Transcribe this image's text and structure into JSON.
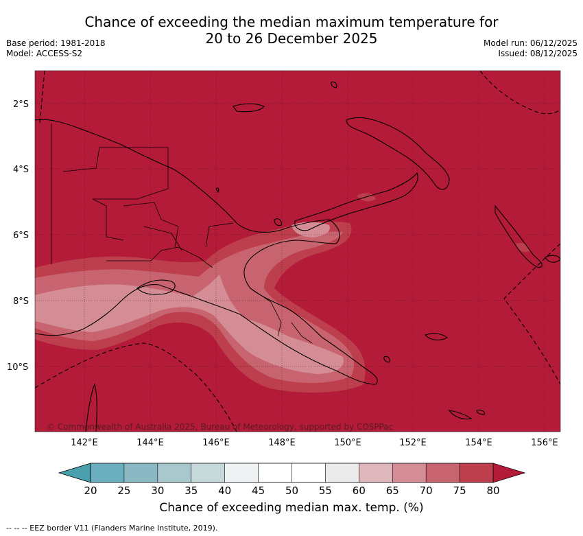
{
  "title_line1": "Chance of exceeding the median maximum temperature for",
  "title_line2": "20 to 26 December 2025",
  "base_period": "Base period: 1981-2018",
  "model": "Model: ACCESS-S2",
  "model_run": "Model run: 06/12/2025",
  "issued": "Issued: 08/12/2025",
  "copyright": "© Commonwealth of Australia 2025, Bureau of Meteorology, supported by COSPPac",
  "lat_labels": [
    "2°S",
    "4°S",
    "6°S",
    "8°S",
    "10°S"
  ],
  "lon_labels": [
    "142°E",
    "144°E",
    "146°E",
    "148°E",
    "150°E",
    "152°E",
    "154°E",
    "156°E"
  ],
  "colorbar": {
    "title": "Chance of exceeding median max. temp. (%)",
    "ticks": [
      "20",
      "25",
      "30",
      "35",
      "40",
      "45",
      "50",
      "55",
      "60",
      "65",
      "70",
      "75",
      "80"
    ],
    "colors": [
      "#6aafbf",
      "#8ab8c3",
      "#a9c8cd",
      "#c8d9dc",
      "#eef2f3",
      "#ffffff",
      "#ffffff",
      "#ebebeb",
      "#e0b7bd",
      "#d48c95",
      "#c8646f",
      "#bd3e4c"
    ],
    "below_color": "#4a9fad",
    "above_color": "#b31b39"
  },
  "map_colors": {
    "background": "#b31b39",
    "band_75": "#bd3e4c",
    "band_70": "#c8646f",
    "band_65": "#d48c95"
  },
  "footer": "--  --  -- EEZ border V11 (Flanders Marine Institute, 2019)."
}
